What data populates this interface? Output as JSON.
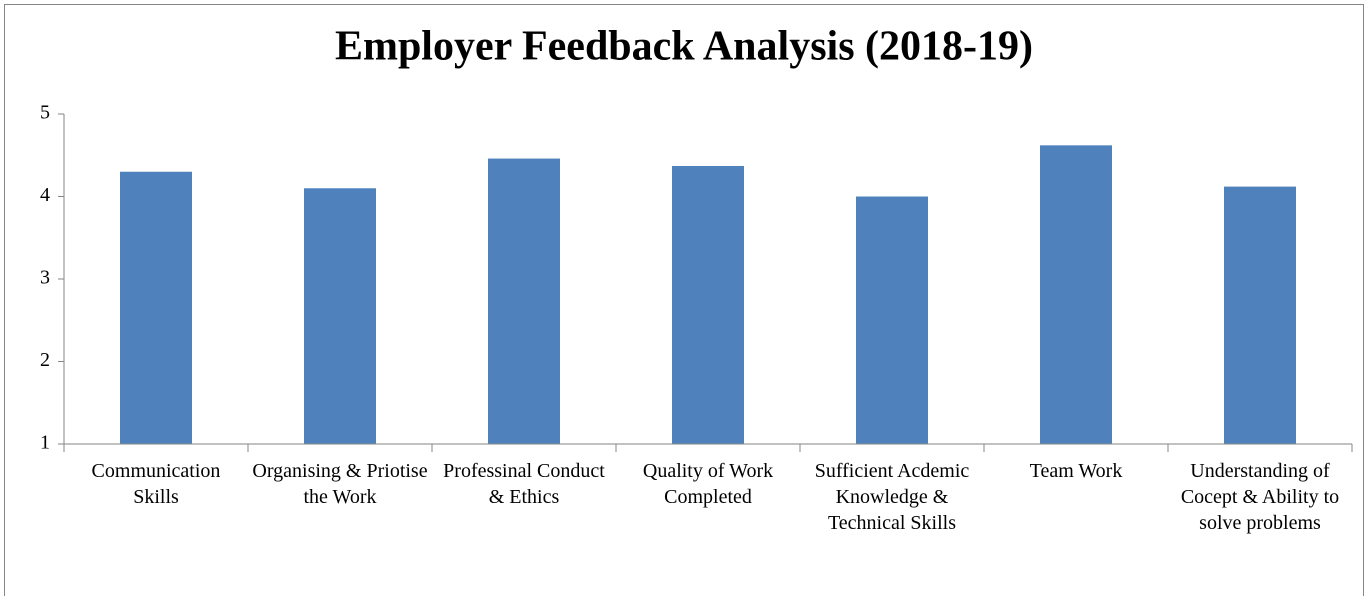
{
  "chart_data": {
    "type": "bar",
    "title": "Employer Feedback Analysis (2018-19)",
    "categories": [
      "Communication Skills",
      "Organising & Priotise the Work",
      "Professinal Conduct & Ethics",
      "Quality of Work Completed",
      "Sufficient Acdemic Knowledge & Technical Skills",
      "Team Work",
      "Understanding of Cocept & Ability to solve problems"
    ],
    "values": [
      4.3,
      4.1,
      4.46,
      4.37,
      4.0,
      4.62,
      4.12
    ],
    "color": "#4f81bd",
    "ylim": [
      1,
      5
    ],
    "yticks": [
      1,
      2,
      3,
      4,
      5
    ],
    "grid": false
  }
}
